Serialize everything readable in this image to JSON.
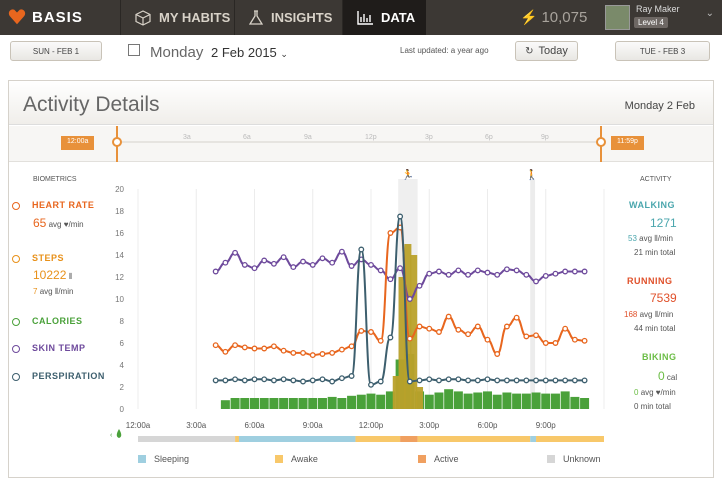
{
  "nav": {
    "brand": "BASIS",
    "tabs": [
      {
        "label": "MY HABITS"
      },
      {
        "label": "INSIGHTS"
      },
      {
        "label": "DATA"
      }
    ],
    "points": "10,075",
    "user_name": "Ray Maker",
    "user_level": "Level 4"
  },
  "datebar": {
    "prev_label": "SUN - FEB 1",
    "day_name": "Monday",
    "day_date": "2 Feb 2015",
    "updated": "Last updated: a year ago",
    "today_label": "Today",
    "next_label": "TUE - FEB 3"
  },
  "panel": {
    "title": "Activity Details",
    "date": "Monday 2 Feb",
    "timeline_start": "12:00a",
    "timeline_end": "11:59p",
    "timeline_ticks": [
      "3a",
      "6a",
      "9a",
      "12p",
      "3p",
      "6p",
      "9p"
    ]
  },
  "biometrics": {
    "title": "BIOMETRICS",
    "heart_rate": {
      "label": "HEART RATE",
      "value": "65",
      "unit": "avg ♥/min"
    },
    "steps": {
      "label": "STEPS",
      "value": "10222",
      "sub_value": "7",
      "sub_unit": "avg ⦀/min"
    },
    "calories": {
      "label": "CALORIES"
    },
    "skin_temp": {
      "label": "SKIN TEMP"
    },
    "perspiration": {
      "label": "PERSPIRATION"
    }
  },
  "activity": {
    "title": "ACTIVITY",
    "walking": {
      "label": "WALKING",
      "steps": "1271",
      "avg": "53",
      "avg_unit": "avg ⦀/min",
      "total": "21 min total"
    },
    "running": {
      "label": "RUNNING",
      "steps": "7539",
      "avg": "168",
      "avg_unit": "avg ⦀/min",
      "total": "44 min total"
    },
    "biking": {
      "label": "BIKING",
      "cal": "0",
      "cal_unit": "cal",
      "avg": "0",
      "avg_unit": "avg ♥/min",
      "total": "0 min total"
    }
  },
  "legend": {
    "sleeping": "Sleeping",
    "awake": "Awake",
    "active": "Active",
    "unknown": "Unknown"
  },
  "colors": {
    "heart": "#e8661e",
    "steps": "#e8911a",
    "calories": "#4aa13a",
    "skin": "#6e4a9c",
    "perspiration": "#3d5f6e",
    "walking": "#4aa6ad",
    "running": "#e0502a",
    "biking": "#6bbd45"
  },
  "chart_data": {
    "type": "line",
    "x_tick_labels": [
      "12:00a",
      "3:00a",
      "6:00a",
      "9:00a",
      "12:00p",
      "3:00p",
      "6:00p",
      "9:00p"
    ],
    "y_tick_labels": [
      0,
      2,
      4,
      6,
      8,
      10,
      12,
      14,
      16,
      18,
      20
    ],
    "ylim": [
      0,
      20
    ],
    "xlim_hours": [
      0,
      24
    ],
    "series": [
      {
        "name": "Skin Temp",
        "color": "#6e4a9c",
        "x": [
          4,
          4.5,
          5,
          5.5,
          6,
          6.5,
          7,
          7.5,
          8,
          8.5,
          9,
          9.5,
          10,
          10.5,
          11,
          11.5,
          12,
          12.5,
          13,
          13.5,
          14,
          14.5,
          15,
          15.5,
          16,
          16.5,
          17,
          17.5,
          18,
          18.5,
          19,
          19.5,
          20,
          20.5,
          21,
          21.5,
          22,
          22.5,
          23
        ],
        "values": [
          12.5,
          13.3,
          14.2,
          13.1,
          12.8,
          13.5,
          13.2,
          13.8,
          12.9,
          13.4,
          13.1,
          13.7,
          13.3,
          14.3,
          13.0,
          13.6,
          13.1,
          12.6,
          11.8,
          12.8,
          10.0,
          11.2,
          12.3,
          12.5,
          12.2,
          12.6,
          12.2,
          12.6,
          12.4,
          12.2,
          12.7,
          12.6,
          12.2,
          11.6,
          12.1,
          12.3,
          12.5,
          12.5,
          12.5
        ]
      },
      {
        "name": "Heart Rate",
        "color": "#e8661e",
        "x": [
          4,
          4.5,
          5,
          5.5,
          6,
          6.5,
          7,
          7.5,
          8,
          8.5,
          9,
          9.5,
          10,
          10.5,
          11,
          11.5,
          12,
          12.5,
          13,
          13.5,
          14,
          14.5,
          15,
          15.5,
          16,
          16.5,
          17,
          17.5,
          18,
          18.5,
          19,
          19.5,
          20,
          20.5,
          21,
          21.5,
          22,
          22.5,
          23
        ],
        "values": [
          5.8,
          5.2,
          5.8,
          5.6,
          5.5,
          5.5,
          5.7,
          5.3,
          5.1,
          5.1,
          4.9,
          5.0,
          5.1,
          5.4,
          5.7,
          7.1,
          7.0,
          6.2,
          16.0,
          16.5,
          6.4,
          7.5,
          7.3,
          7.0,
          8.4,
          7.2,
          6.8,
          7.5,
          6.3,
          5.0,
          7.5,
          8.3,
          6.6,
          6.7,
          6.0,
          6.0,
          7.3,
          6.3,
          6.2
        ]
      },
      {
        "name": "Perspiration",
        "color": "#3d5f6e",
        "x": [
          4,
          4.5,
          5,
          5.5,
          6,
          6.5,
          7,
          7.5,
          8,
          8.5,
          9,
          9.5,
          10,
          10.5,
          11,
          11.5,
          12,
          12.5,
          13,
          13.5,
          14,
          14.5,
          15,
          15.5,
          16,
          16.5,
          17,
          17.5,
          18,
          18.5,
          19,
          19.5,
          20,
          20.5,
          21,
          21.5,
          22,
          22.5,
          23
        ],
        "values": [
          2.6,
          2.6,
          2.7,
          2.6,
          2.7,
          2.7,
          2.6,
          2.7,
          2.6,
          2.5,
          2.6,
          2.7,
          2.5,
          2.8,
          3.0,
          14.5,
          2.2,
          2.5,
          6.5,
          17.5,
          2.5,
          2.6,
          2.7,
          2.6,
          2.7,
          2.7,
          2.6,
          2.6,
          2.7,
          2.6,
          2.6,
          2.6,
          2.6,
          2.6,
          2.6,
          2.6,
          2.6,
          2.6,
          2.6
        ]
      },
      {
        "name": "Steps",
        "color": "#b9a12a",
        "x": [
          13.3,
          13.6,
          13.9,
          14.2,
          14.5
        ],
        "values": [
          3,
          12,
          15,
          14,
          2
        ]
      },
      {
        "name": "Calories",
        "color": "#4aa13a",
        "x": [
          4.5,
          5,
          5.5,
          6,
          6.5,
          7,
          7.5,
          8,
          8.5,
          9,
          9.5,
          10,
          10.5,
          11,
          11.5,
          12,
          12.5,
          13,
          13.5,
          14,
          14.5,
          15,
          15.5,
          16,
          16.5,
          17,
          17.5,
          18,
          18.5,
          19,
          19.5,
          20,
          20.5,
          21,
          21.5,
          22,
          22.5,
          23
        ],
        "values": [
          0.8,
          1.0,
          1.0,
          1.0,
          1.0,
          1.0,
          1.0,
          1.0,
          1.0,
          1.0,
          1.0,
          1.1,
          1.0,
          1.2,
          1.3,
          1.4,
          1.3,
          1.6,
          4.5,
          5.0,
          1.6,
          1.3,
          1.5,
          1.8,
          1.6,
          1.4,
          1.5,
          1.6,
          1.3,
          1.5,
          1.4,
          1.4,
          1.5,
          1.4,
          1.4,
          1.6,
          1.1,
          1.0
        ]
      }
    ],
    "sleep_bar": [
      {
        "from": 0,
        "to": 5,
        "state": "Unknown"
      },
      {
        "from": 5,
        "to": 5.2,
        "state": "Awake"
      },
      {
        "from": 5.2,
        "to": 11.2,
        "state": "Sleeping"
      },
      {
        "from": 11.2,
        "to": 13.5,
        "state": "Awake"
      },
      {
        "from": 13.5,
        "to": 14.4,
        "state": "Active"
      },
      {
        "from": 14.4,
        "to": 20.2,
        "state": "Awake"
      },
      {
        "from": 20.2,
        "to": 20.5,
        "state": "Sleeping"
      },
      {
        "from": 20.5,
        "to": 24,
        "state": "Awake"
      }
    ]
  }
}
